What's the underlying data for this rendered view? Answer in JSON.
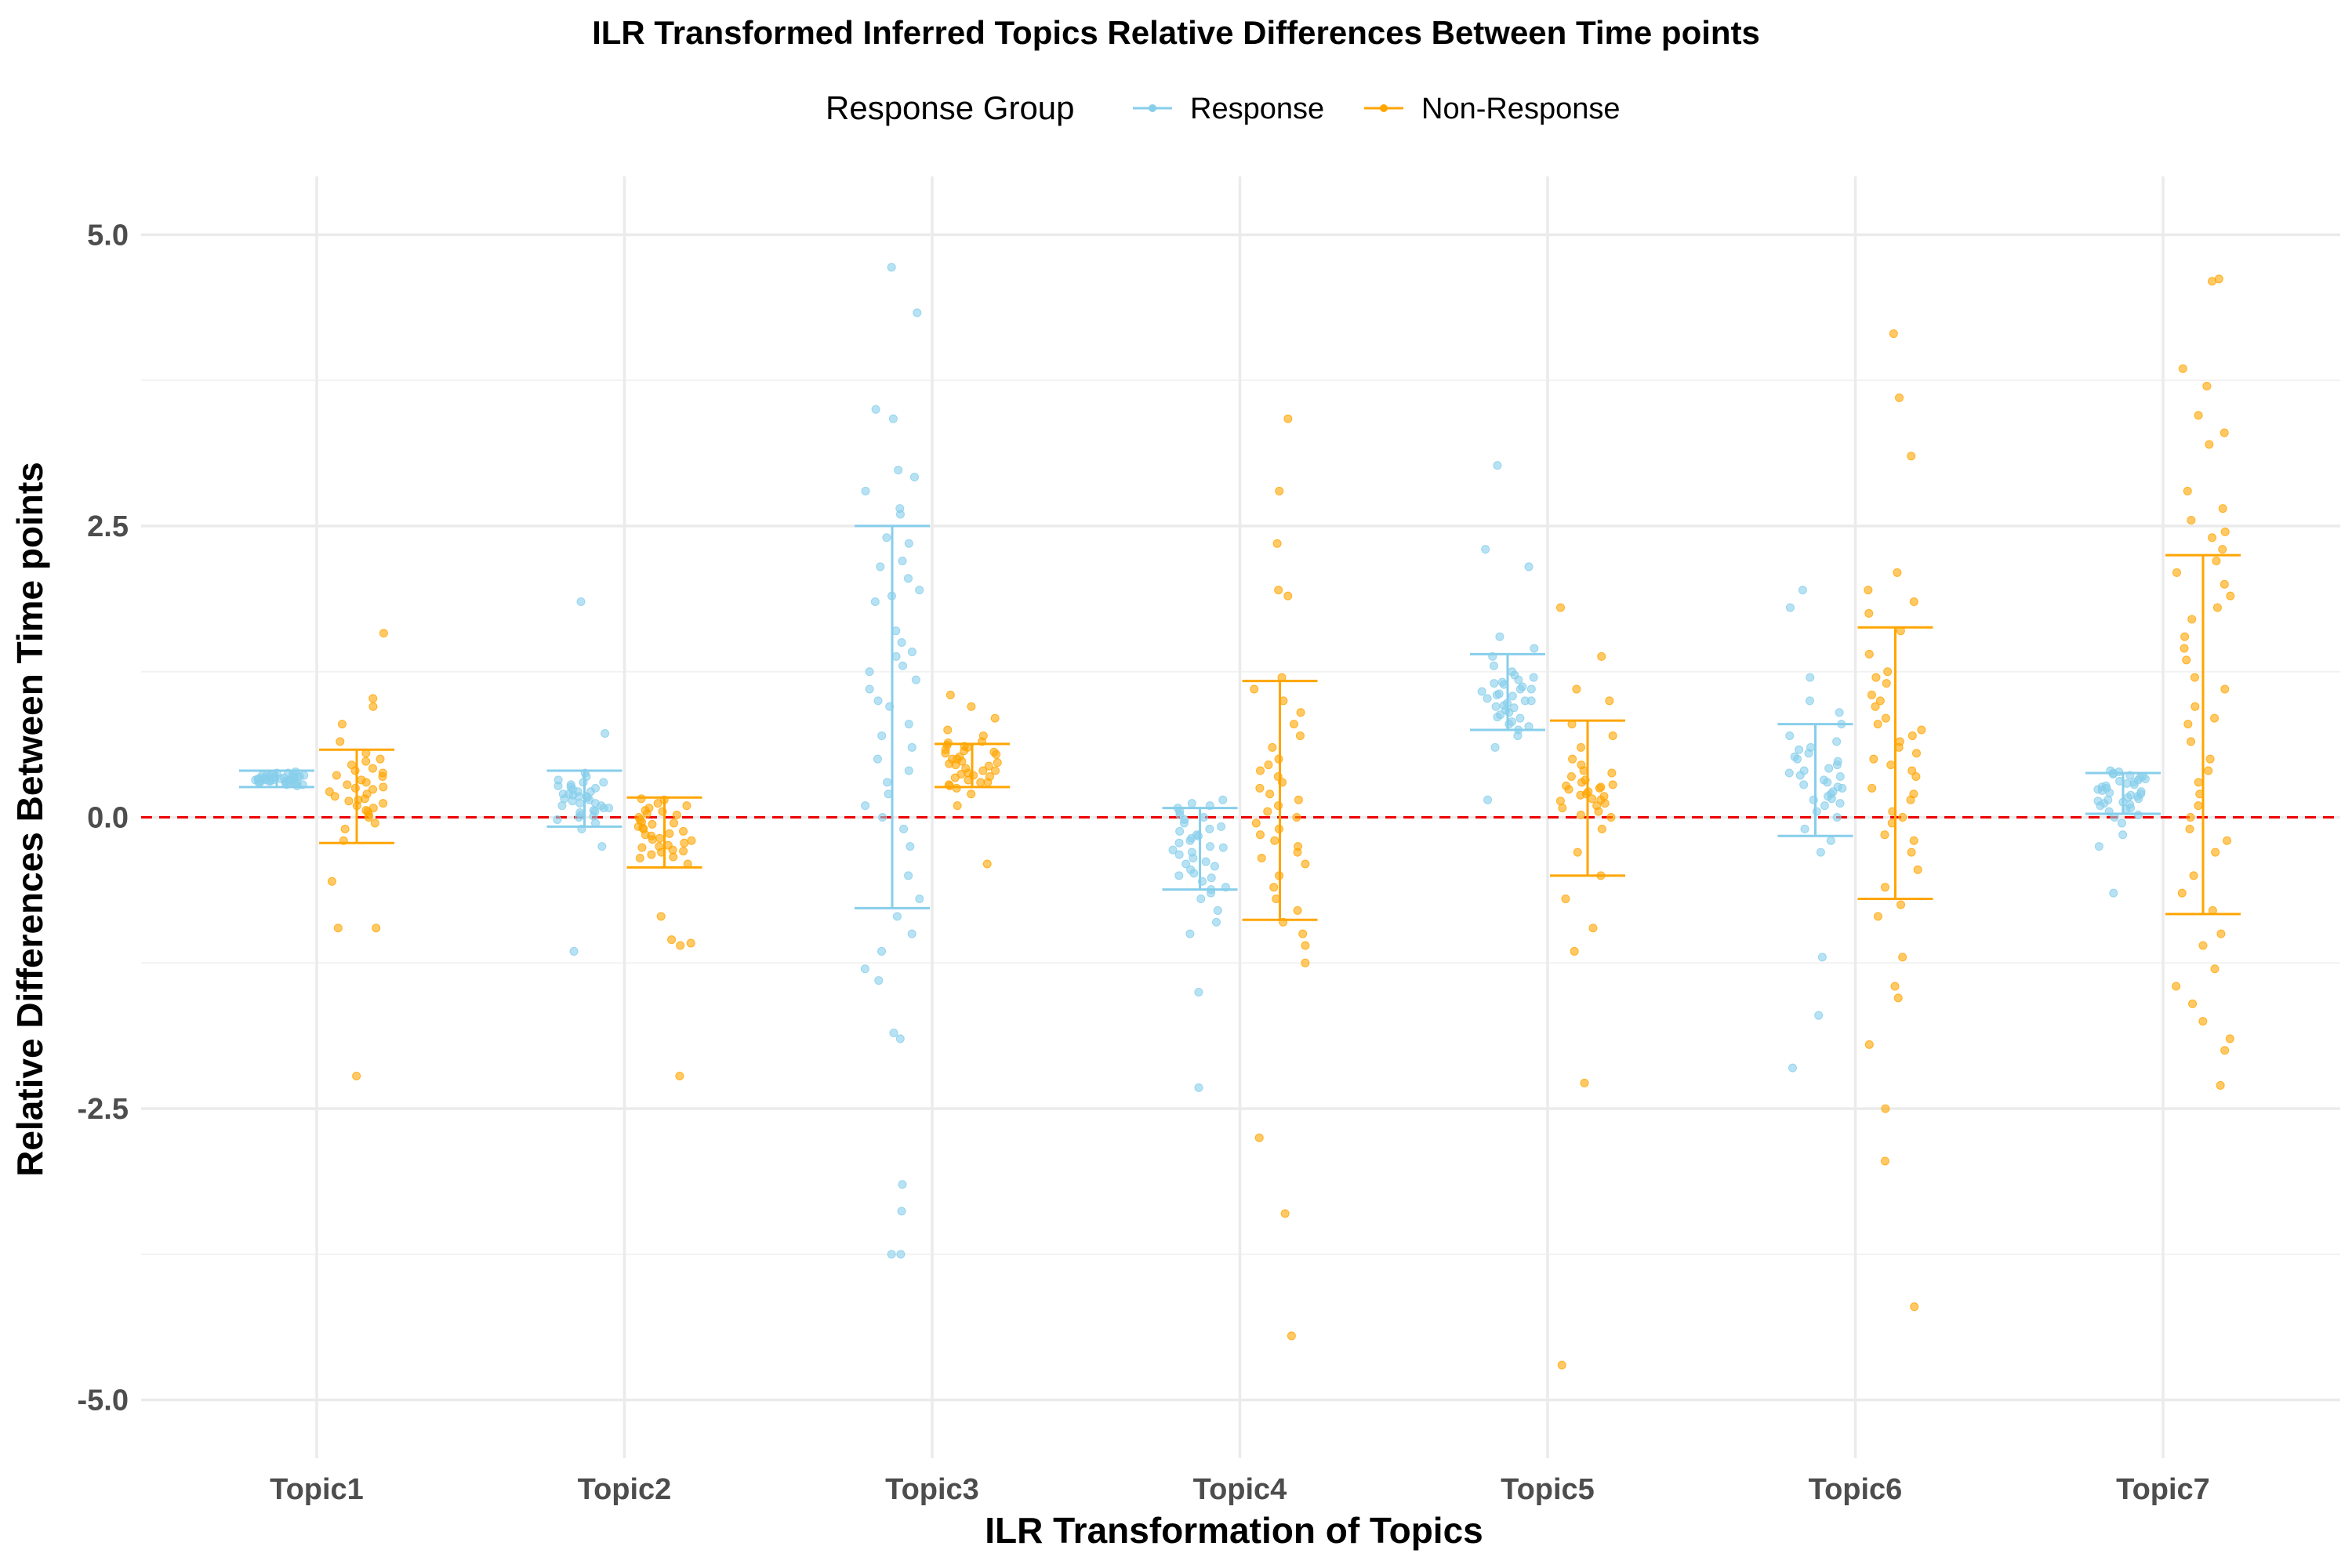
{
  "chart_data": {
    "type": "scatter",
    "title": "ILR Transformed Inferred Topics Relative Differences Between Time points",
    "xlabel": "ILR Transformation of Topics",
    "ylabel": "Relative Differences Between Time points",
    "categories": [
      "Topic1",
      "Topic2",
      "Topic3",
      "Topic4",
      "Topic5",
      "Topic6",
      "Topic7"
    ],
    "ylim": [
      -5.5,
      5.5
    ],
    "yticks": [
      -5.0,
      -2.5,
      0.0,
      2.5,
      5.0
    ],
    "ytick_labels": [
      "-5.0",
      "-2.5",
      "0.0",
      "2.5",
      "5.0"
    ],
    "grid": true,
    "reference_line": {
      "y": 0.0,
      "color": "#ee0000",
      "style": "dashed"
    },
    "legend": {
      "title": "Response Group",
      "placement": "top"
    },
    "series": [
      {
        "name": "Response",
        "color": "#87ceeb",
        "error_bars": [
          {
            "category": "Topic1",
            "low": 0.26,
            "high": 0.4
          },
          {
            "category": "Topic2",
            "low": -0.08,
            "high": 0.4
          },
          {
            "category": "Topic3",
            "low": -0.78,
            "high": 2.5
          },
          {
            "category": "Topic4",
            "low": -0.62,
            "high": 0.08
          },
          {
            "category": "Topic5",
            "low": 0.75,
            "high": 1.4
          },
          {
            "category": "Topic6",
            "low": -0.16,
            "high": 0.8
          },
          {
            "category": "Topic7",
            "low": 0.03,
            "high": 0.38
          }
        ],
        "points": [
          {
            "category": "Topic1",
            "values": [
              0.3,
              0.32,
              0.34,
              0.36,
              0.28,
              0.31,
              0.33,
              0.35,
              0.38,
              0.29,
              0.32,
              0.34,
              0.37,
              0.3,
              0.33,
              0.36,
              0.31,
              0.35,
              0.27,
              0.39,
              0.32,
              0.34,
              0.3,
              0.36,
              0.33,
              0.31,
              0.35,
              0.29,
              0.37,
              0.32,
              0.34,
              0.3,
              0.33,
              0.36,
              0.31,
              0.38,
              0.28,
              0.35,
              0.32,
              0.34
            ]
          },
          {
            "category": "Topic2",
            "values": [
              1.85,
              0.72,
              -0.25,
              -1.15,
              0.35,
              0.3,
              0.25,
              0.2,
              0.15,
              0.1,
              0.05,
              0.0,
              -0.05,
              0.28,
              0.22,
              0.18,
              0.12,
              0.08,
              0.02,
              0.32,
              0.26,
              0.16,
              0.06,
              -0.02,
              0.24,
              0.14,
              0.04,
              0.2,
              0.1,
              0.3,
              0.18,
              0.08,
              0.22,
              0.12,
              0.27,
              0.17,
              -0.1,
              0.38,
              0.01,
              0.19
            ]
          },
          {
            "category": "Topic3",
            "values": [
              4.72,
              4.33,
              3.5,
              3.42,
              2.92,
              2.98,
              2.8,
              2.65,
              2.6,
              2.4,
              2.35,
              2.2,
              2.15,
              2.05,
              1.95,
              1.9,
              1.85,
              1.6,
              1.5,
              1.42,
              1.38,
              1.3,
              1.25,
              1.18,
              1.1,
              1.0,
              0.95,
              0.8,
              0.7,
              0.6,
              0.5,
              0.4,
              0.3,
              0.2,
              0.1,
              0.0,
              -0.1,
              -0.25,
              -0.5,
              -0.7,
              -0.85,
              -1.0,
              -1.15,
              -1.3,
              -1.4,
              -1.85,
              -1.9,
              -3.15,
              -3.38,
              -3.75,
              -3.75
            ]
          },
          {
            "category": "Topic4",
            "values": [
              0.15,
              0.1,
              0.05,
              0.0,
              -0.05,
              -0.1,
              -0.15,
              -0.2,
              -0.25,
              -0.3,
              -0.35,
              -0.4,
              -0.45,
              -0.5,
              -0.55,
              -0.6,
              -0.65,
              -0.7,
              -0.8,
              -0.9,
              -1.0,
              -1.5,
              -2.32,
              0.02,
              -0.08,
              -0.18,
              -0.28,
              -0.38,
              -0.48,
              0.08,
              -0.12,
              -0.22,
              -0.32,
              -0.42,
              -0.52,
              -0.62,
              0.12,
              -0.02,
              -0.16,
              -0.26
            ]
          },
          {
            "category": "Topic5",
            "values": [
              3.02,
              2.3,
              2.15,
              1.55,
              1.45,
              1.38,
              1.3,
              1.25,
              1.2,
              1.15,
              1.1,
              1.05,
              1.0,
              0.95,
              0.9,
              0.85,
              0.8,
              0.75,
              0.7,
              0.6,
              0.15,
              1.12,
              1.08,
              1.02,
              0.98,
              0.92,
              0.88,
              1.18,
              1.22,
              0.82,
              1.06,
              1.14,
              0.96,
              1.04,
              0.86,
              1.1,
              1.0,
              0.94,
              1.16,
              0.78
            ]
          },
          {
            "category": "Topic6",
            "values": [
              1.95,
              1.8,
              1.2,
              1.0,
              0.9,
              0.8,
              0.7,
              0.6,
              0.55,
              0.5,
              0.45,
              0.4,
              0.35,
              0.3,
              0.25,
              0.2,
              0.15,
              0.1,
              0.0,
              -0.1,
              -0.2,
              -0.3,
              -1.2,
              -1.7,
              -2.15,
              0.48,
              0.42,
              0.38,
              0.32,
              0.28,
              0.22,
              0.18,
              0.12,
              0.05,
              0.65,
              0.58,
              0.52,
              0.36,
              0.26,
              0.16
            ]
          },
          {
            "category": "Topic7",
            "values": [
              0.4,
              0.38,
              0.35,
              0.32,
              0.3,
              0.28,
              0.25,
              0.22,
              0.2,
              0.18,
              0.15,
              0.12,
              0.1,
              0.05,
              0.0,
              -0.05,
              -0.15,
              -0.25,
              -0.65,
              0.36,
              0.33,
              0.27,
              0.24,
              0.21,
              0.16,
              0.13,
              0.08,
              0.29,
              0.26,
              0.34,
              0.31,
              0.19,
              0.11,
              0.37,
              0.23,
              0.17,
              0.07,
              0.02,
              0.39,
              0.14
            ]
          }
        ]
      },
      {
        "name": "Non-Response",
        "color": "#ffa500",
        "error_bars": [
          {
            "category": "Topic1",
            "low": -0.22,
            "high": 0.58
          },
          {
            "category": "Topic2",
            "low": -0.43,
            "high": 0.17
          },
          {
            "category": "Topic3",
            "low": 0.26,
            "high": 0.63
          },
          {
            "category": "Topic4",
            "low": -0.88,
            "high": 1.17
          },
          {
            "category": "Topic5",
            "low": -0.5,
            "high": 0.83
          },
          {
            "category": "Topic6",
            "low": -0.7,
            "high": 1.63
          },
          {
            "category": "Topic7",
            "low": -0.83,
            "high": 2.25
          }
        ],
        "points": [
          {
            "category": "Topic1",
            "values": [
              1.58,
              1.02,
              0.95,
              0.8,
              0.65,
              0.55,
              0.5,
              0.45,
              0.4,
              0.35,
              0.3,
              0.25,
              0.2,
              0.15,
              0.1,
              0.05,
              0.0,
              -0.1,
              -0.2,
              -0.55,
              -0.95,
              -0.95,
              -2.22,
              0.28,
              0.22,
              0.18,
              0.12,
              0.08,
              0.32,
              0.38,
              0.42,
              0.02,
              -0.05,
              0.26,
              0.16,
              0.06,
              0.36,
              0.24,
              0.14,
              0.48
            ]
          },
          {
            "category": "Topic2",
            "values": [
              0.15,
              0.1,
              0.05,
              0.0,
              -0.05,
              -0.1,
              -0.15,
              -0.2,
              -0.25,
              -0.3,
              -0.35,
              -0.4,
              -0.85,
              -1.05,
              -1.08,
              -1.1,
              -2.22,
              0.12,
              0.08,
              0.02,
              -0.02,
              -0.08,
              -0.12,
              -0.18,
              -0.22,
              -0.28,
              -0.32,
              0.06,
              -0.04,
              -0.14,
              -0.24,
              -0.34,
              0.16,
              -0.06,
              -0.16,
              -0.26,
              0.03,
              -0.09,
              -0.19,
              -0.29
            ]
          },
          {
            "category": "Topic3",
            "values": [
              1.05,
              0.95,
              0.85,
              0.75,
              0.7,
              0.65,
              0.6,
              0.55,
              0.5,
              0.45,
              0.4,
              0.35,
              0.3,
              0.25,
              0.2,
              0.1,
              -0.4,
              0.58,
              0.52,
              0.48,
              0.42,
              0.38,
              0.32,
              0.28,
              0.62,
              0.56,
              0.46,
              0.36,
              0.54,
              0.44,
              0.34,
              0.64,
              0.5,
              0.4,
              0.3,
              0.57,
              0.47,
              0.37,
              0.27,
              0.61
            ]
          },
          {
            "category": "Topic4",
            "values": [
              3.42,
              2.8,
              2.35,
              1.95,
              1.9,
              1.2,
              1.1,
              1.0,
              0.9,
              0.8,
              0.7,
              0.6,
              0.5,
              0.4,
              0.3,
              0.2,
              0.1,
              0.0,
              -0.1,
              -0.2,
              -0.3,
              -0.4,
              -0.5,
              -0.6,
              -0.7,
              -0.8,
              -0.9,
              -1.0,
              -1.1,
              -1.25,
              -2.75,
              -3.4,
              -4.45,
              0.45,
              0.35,
              0.25,
              0.15,
              0.05,
              -0.05,
              -0.15,
              -0.25,
              -0.35
            ]
          },
          {
            "category": "Topic5",
            "values": [
              1.8,
              1.38,
              1.1,
              1.0,
              0.8,
              0.7,
              0.6,
              0.5,
              0.4,
              0.35,
              0.3,
              0.25,
              0.2,
              0.15,
              0.1,
              0.05,
              0.0,
              -0.1,
              -0.3,
              -0.5,
              -0.7,
              -0.95,
              -1.15,
              -2.28,
              -4.7,
              0.28,
              0.22,
              0.18,
              0.12,
              0.32,
              0.26,
              0.16,
              0.08,
              0.38,
              0.24,
              0.14,
              0.02,
              0.45,
              0.27,
              0.19
            ]
          },
          {
            "category": "Topic6",
            "values": [
              4.15,
              3.6,
              3.1,
              2.1,
              1.95,
              1.85,
              1.75,
              1.6,
              1.4,
              1.25,
              1.15,
              1.05,
              0.95,
              0.85,
              0.75,
              0.65,
              0.55,
              0.45,
              0.35,
              0.25,
              0.15,
              0.05,
              -0.05,
              -0.15,
              -0.3,
              -0.45,
              -0.6,
              -0.75,
              -0.85,
              -1.2,
              -1.45,
              -1.55,
              -1.95,
              -2.5,
              -2.95,
              -4.2,
              1.0,
              0.8,
              0.6,
              0.4,
              0.2,
              0.0,
              -0.2,
              1.2,
              0.7,
              0.5
            ]
          },
          {
            "category": "Topic7",
            "values": [
              4.6,
              4.62,
              3.85,
              3.7,
              3.45,
              3.3,
              3.2,
              2.8,
              2.65,
              2.55,
              2.45,
              2.4,
              2.3,
              2.2,
              2.1,
              2.0,
              1.9,
              1.8,
              1.7,
              1.55,
              1.45,
              1.35,
              1.2,
              1.1,
              0.95,
              0.85,
              0.8,
              0.65,
              0.5,
              0.4,
              0.3,
              0.2,
              0.1,
              0.0,
              -0.1,
              -0.2,
              -0.3,
              -0.5,
              -0.65,
              -0.8,
              -1.0,
              -1.1,
              -1.3,
              -1.45,
              -1.6,
              -1.75,
              -1.9,
              -2.0,
              -2.3
            ]
          }
        ]
      }
    ]
  }
}
